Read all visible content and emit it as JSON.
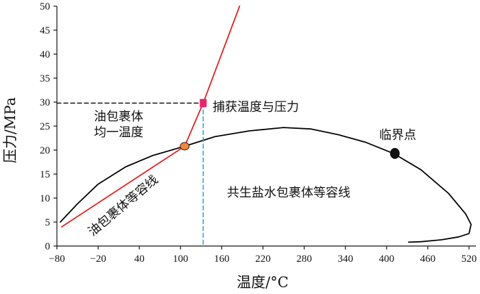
{
  "chart_data": {
    "type": "line",
    "xlabel": "温度/°C",
    "ylabel": "压力/MPa",
    "xlim": [
      -80,
      530
    ],
    "ylim": [
      0,
      50
    ],
    "x_ticks": [
      "−80",
      "−20",
      "40",
      "100",
      "160",
      "220",
      "280",
      "340",
      "400",
      "460",
      "520"
    ],
    "x_tick_values": [
      -80,
      -20,
      40,
      100,
      160,
      220,
      280,
      340,
      400,
      460,
      520
    ],
    "y_ticks": [
      "0",
      "5",
      "10",
      "15",
      "20",
      "25",
      "30",
      "35",
      "40",
      "45",
      "50"
    ],
    "y_tick_values": [
      0,
      5,
      10,
      15,
      20,
      25,
      30,
      35,
      40,
      45,
      50
    ],
    "series": [
      {
        "color": "#000000",
        "x": [
          -75,
          -50,
          -20,
          20,
          60,
          106,
          150,
          200,
          250,
          290,
          330,
          370,
          410,
          450,
          490,
          515,
          523,
          520,
          505,
          480,
          450,
          432
        ],
        "y": [
          5,
          8.8,
          12.9,
          16.5,
          18.9,
          20.8,
          22.8,
          24.0,
          24.7,
          24.4,
          23.2,
          21.6,
          19.3,
          15.9,
          11.0,
          6.7,
          4.5,
          2.6,
          1.9,
          1.3,
          0.9,
          0.8
        ]
      },
      {
        "color": "#e02020",
        "x": [
          -73,
          106,
          133,
          186
        ],
        "y": [
          4.0,
          20.8,
          29.8,
          50
        ]
      },
      {
        "color": "#1a9ad6",
        "dashed": true,
        "x": [
          133,
          133
        ],
        "y": [
          29.8,
          0
        ]
      },
      {
        "color": "#000000",
        "dashed": true,
        "x": [
          -80,
          133
        ],
        "y": [
          29.8,
          29.8
        ]
      }
    ],
    "points": [
      {
        "x": 106,
        "y": 20.8,
        "color": "#f0883a",
        "shape": "ellipse"
      },
      {
        "x": 133,
        "y": 29.8,
        "color": "#e8246a",
        "shape": "square"
      },
      {
        "x": 412,
        "y": 19.3,
        "color": "#111111",
        "shape": "ellipse"
      }
    ],
    "annotations": {
      "trapping": "捕获温度与压力",
      "homog_line1": "油包裹体",
      "homog_line2": "均一温度",
      "critical": "临界点",
      "inclusion_isochore": "油包裹体等容线",
      "brine_isochore": "共生盐水包裹体等容线"
    }
  }
}
